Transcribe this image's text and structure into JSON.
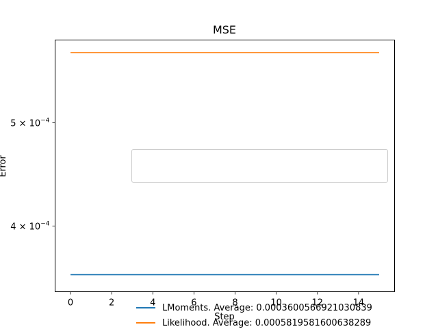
{
  "chart_data": {
    "type": "line",
    "title": "MSE",
    "xlabel": "Step",
    "ylabel": "Error",
    "yscale": "log",
    "xlim": [
      -0.75,
      15.75
    ],
    "ylim": [
      0.000347,
      0.000598
    ],
    "x_ticks": [
      0,
      2,
      4,
      6,
      8,
      10,
      12,
      14
    ],
    "x_tick_labels": [
      "0",
      "2",
      "4",
      "6",
      "8",
      "10",
      "12",
      "14"
    ],
    "y_ticks": [
      0.0004,
      0.0005
    ],
    "y_tick_labels": [
      {
        "mantissa": "4",
        "base": "10",
        "exp": "−4"
      },
      {
        "mantissa": "5",
        "base": "10",
        "exp": "−4"
      }
    ],
    "x": [
      0,
      15
    ],
    "series": [
      {
        "name": "LMoments. Average: 0.0003600566921030839",
        "color": "#1f77b4",
        "values": [
          0.00036006,
          0.00036006
        ]
      },
      {
        "name": "Likelihood. Average: 0.0005819581600638289",
        "color": "#ff7f0e",
        "values": [
          0.00058196,
          0.00058196
        ]
      }
    ],
    "legend": {
      "placement": "center-right"
    },
    "grid": false
  }
}
